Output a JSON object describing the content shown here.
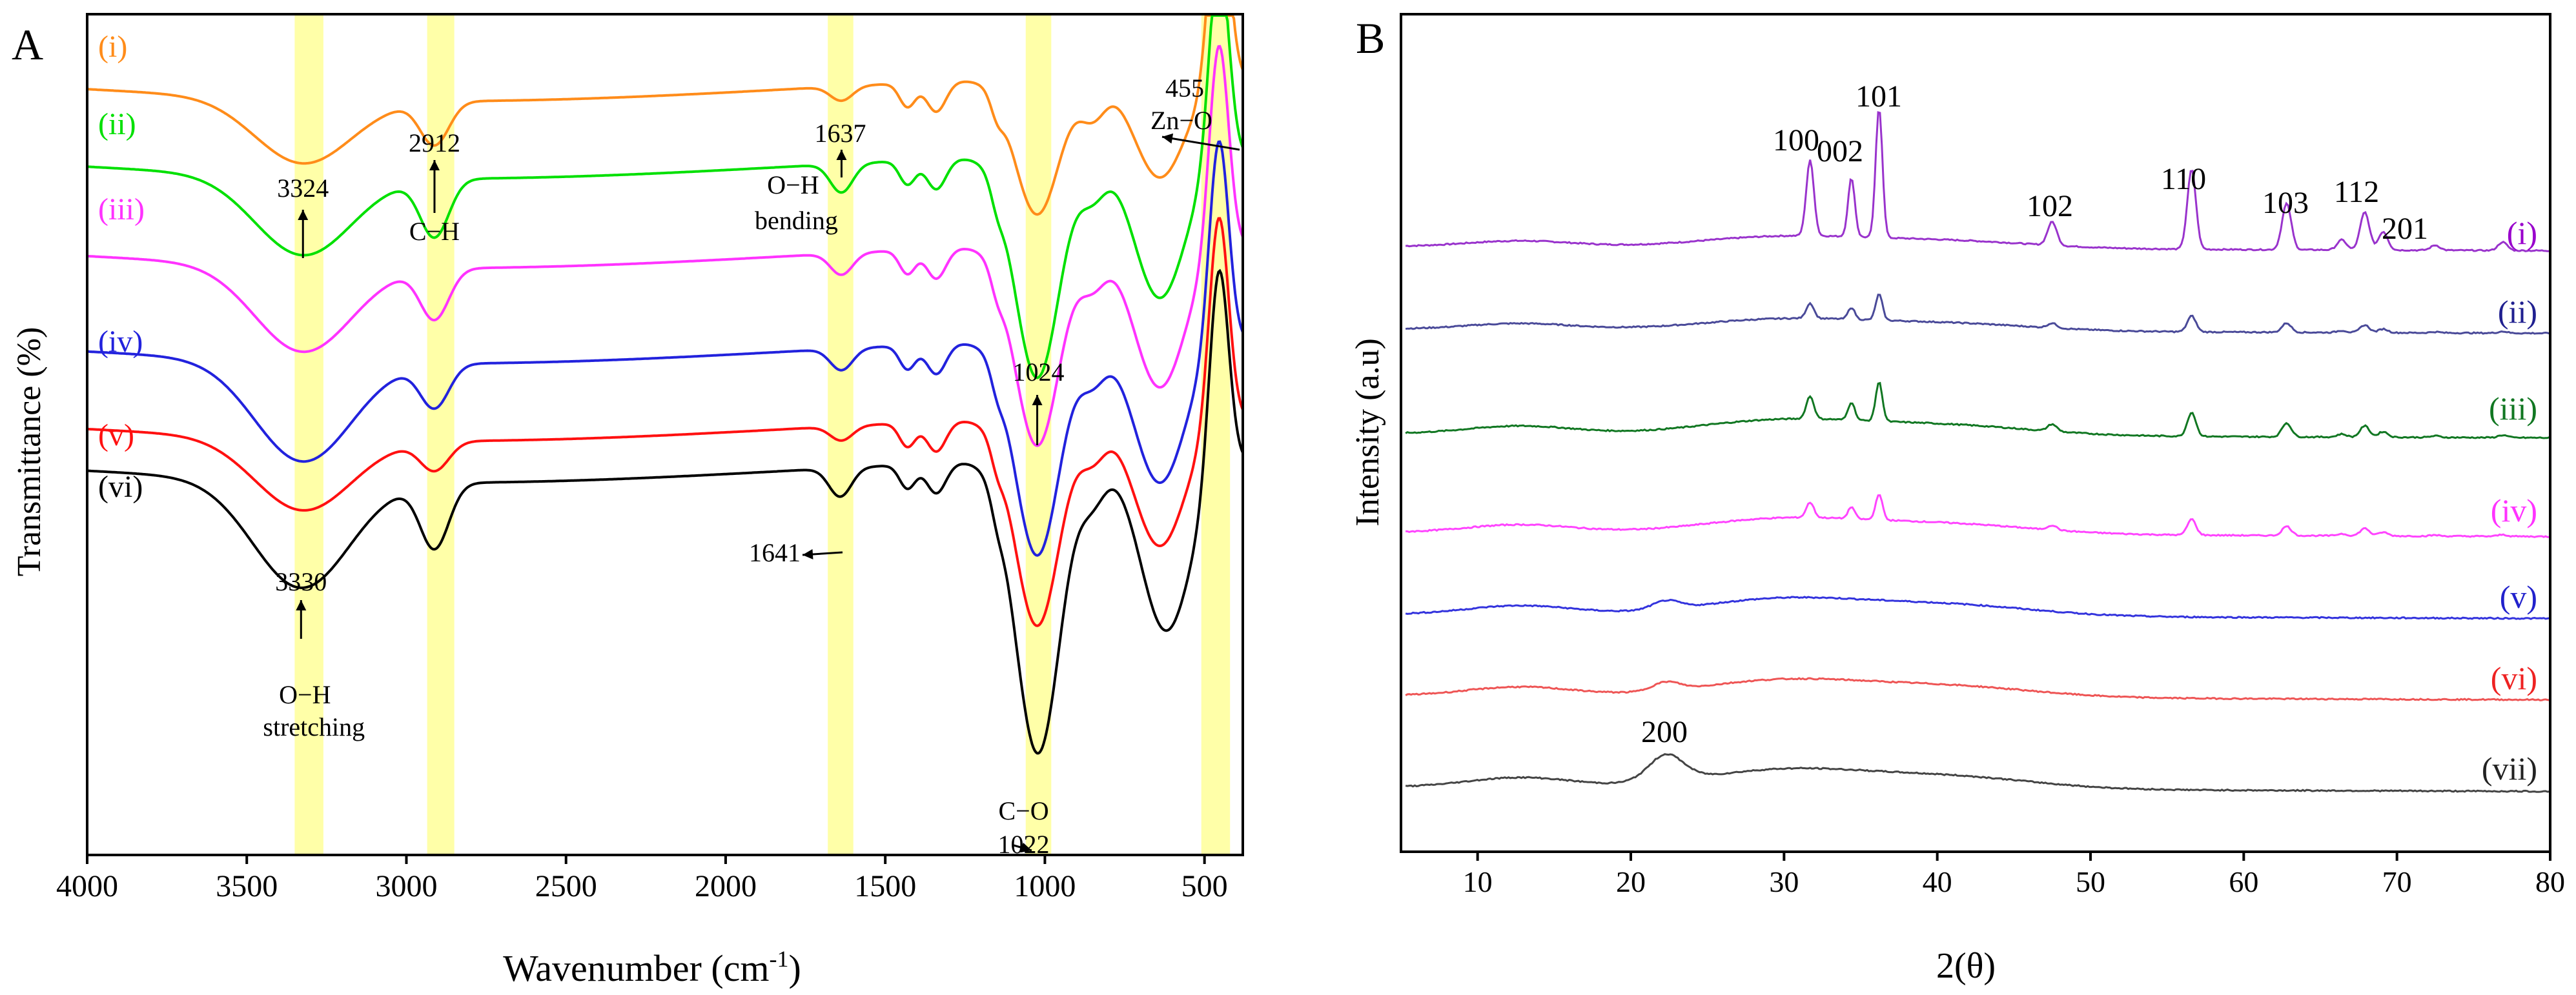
{
  "chart_data": [
    {
      "panel_label": "A",
      "type": "line",
      "xlabel": "Wavenumber (cm",
      "xlabel_sup": "-1",
      "xlabel_close": ")",
      "ylabel": "Transmittance (%)",
      "xlim": [
        4000,
        380
      ],
      "x_reversed": true,
      "xticks": [
        4000,
        3500,
        3000,
        2500,
        2000,
        1500,
        1000,
        500
      ],
      "highlight_bands": [
        {
          "from": 3350,
          "to": 3260
        },
        {
          "from": 2935,
          "to": 2850
        },
        {
          "from": 1680,
          "to": 1600
        },
        {
          "from": 1060,
          "to": 980
        },
        {
          "from": 510,
          "to": 420
        }
      ],
      "series": [
        {
          "name": "(i)",
          "color": "#ff8c1a",
          "baseline": 1.0,
          "peaks": [
            [
              3324,
              0.45
            ],
            [
              2912,
              0.3
            ],
            [
              1637,
              0.1
            ],
            [
              1024,
              0.95
            ],
            [
              640,
              0.7
            ]
          ]
        },
        {
          "name": "(ii)",
          "color": "#00e000",
          "baseline": 0.87,
          "peaks": [
            [
              3324,
              0.55
            ],
            [
              2912,
              0.4
            ],
            [
              1637,
              0.2
            ],
            [
              1024,
              1.55
            ],
            [
              640,
              1.0
            ]
          ]
        },
        {
          "name": "(iii)",
          "color": "#ff33ff",
          "baseline": 0.72,
          "peaks": [
            [
              3324,
              0.6
            ],
            [
              2912,
              0.35
            ],
            [
              1637,
              0.15
            ],
            [
              1024,
              1.4
            ],
            [
              640,
              1.0
            ]
          ]
        },
        {
          "name": "(iv)",
          "color": "#2222dd",
          "baseline": 0.56,
          "peaks": [
            [
              3324,
              0.7
            ],
            [
              2912,
              0.3
            ],
            [
              1637,
              0.15
            ],
            [
              1024,
              1.5
            ],
            [
              640,
              1.0
            ]
          ]
        },
        {
          "name": "(v)",
          "color": "#ff1010",
          "baseline": 0.43,
          "peaks": [
            [
              3324,
              0.5
            ],
            [
              2912,
              0.2
            ],
            [
              1637,
              0.1
            ],
            [
              1024,
              1.45
            ],
            [
              640,
              0.9
            ]
          ]
        },
        {
          "name": "(vi)",
          "color": "#000000",
          "baseline": 0.36,
          "peaks": [
            [
              3330,
              0.75
            ],
            [
              2912,
              0.45
            ],
            [
              1641,
              0.2
            ],
            [
              1022,
              2.05
            ],
            [
              620,
              1.2
            ]
          ]
        }
      ],
      "annotations": [
        {
          "text": "3324",
          "wn": 3324
        },
        {
          "text": "2912",
          "wn": 2912
        },
        {
          "text": "C−H",
          "wn": 2912
        },
        {
          "text": "1637",
          "wn": 1637
        },
        {
          "text": "O−H",
          "wn": 1637
        },
        {
          "text": "bending",
          "wn": 1637
        },
        {
          "text": "455",
          "wn": 455
        },
        {
          "text": "Zn−O",
          "wn": 455
        },
        {
          "text": "1024",
          "wn": 1024
        },
        {
          "text": "1641",
          "wn": 1641
        },
        {
          "text": "3330",
          "wn": 3330
        },
        {
          "text": "O−H",
          "wn": 3330
        },
        {
          "text": "stretching",
          "wn": 3330
        },
        {
          "text": "C−O",
          "wn": 1022
        },
        {
          "text": "1022",
          "wn": 1022
        }
      ]
    },
    {
      "panel_label": "B",
      "type": "line",
      "xlabel": "2(θ)",
      "ylabel": "Intensity (a.u)",
      "xlim": [
        5,
        80
      ],
      "xticks": [
        10,
        20,
        30,
        40,
        50,
        60,
        70,
        80
      ],
      "peak_labels": [
        {
          "text": "100",
          "x": 31.7
        },
        {
          "text": "002",
          "x": 34.4
        },
        {
          "text": "101",
          "x": 36.2
        },
        {
          "text": "102",
          "x": 47.5
        },
        {
          "text": "110",
          "x": 56.6
        },
        {
          "text": "103",
          "x": 62.8
        },
        {
          "text": "112",
          "x": 67.9
        },
        {
          "text": "201",
          "x": 69.1
        },
        {
          "text": "200",
          "x": 22.3
        }
      ],
      "series": [
        {
          "name": "(i)",
          "color": "#9933cc",
          "label_color": "#9900cc",
          "offset": 6,
          "zno_scale": 1.0,
          "amorph_scale": 0.6
        },
        {
          "name": "(ii)",
          "color": "#4a4a99",
          "label_color": "#202090",
          "offset": 5,
          "zno_scale": 0.2,
          "amorph_scale": 0.6
        },
        {
          "name": "(iii)",
          "color": "#117722",
          "label_color": "#117722",
          "offset": 4,
          "zno_scale": 0.3,
          "amorph_scale": 0.8
        },
        {
          "name": "(iv)",
          "color": "#ff44ff",
          "label_color": "#ff33ff",
          "offset": 3,
          "zno_scale": 0.2,
          "amorph_scale": 0.8
        },
        {
          "name": "(v)",
          "color": "#3333dd",
          "label_color": "#2222cc",
          "offset": 2,
          "zno_scale": 0.0,
          "amorph_scale": 0.9
        },
        {
          "name": "(vi)",
          "color": "#ee5555",
          "label_color": "#ee2222",
          "offset": 1,
          "zno_scale": 0.0,
          "amorph_scale": 0.9
        },
        {
          "name": "(vii)",
          "color": "#444444",
          "label_color": "#222222",
          "offset": 0,
          "zno_scale": 0.0,
          "amorph_scale": 1.0
        }
      ]
    }
  ]
}
